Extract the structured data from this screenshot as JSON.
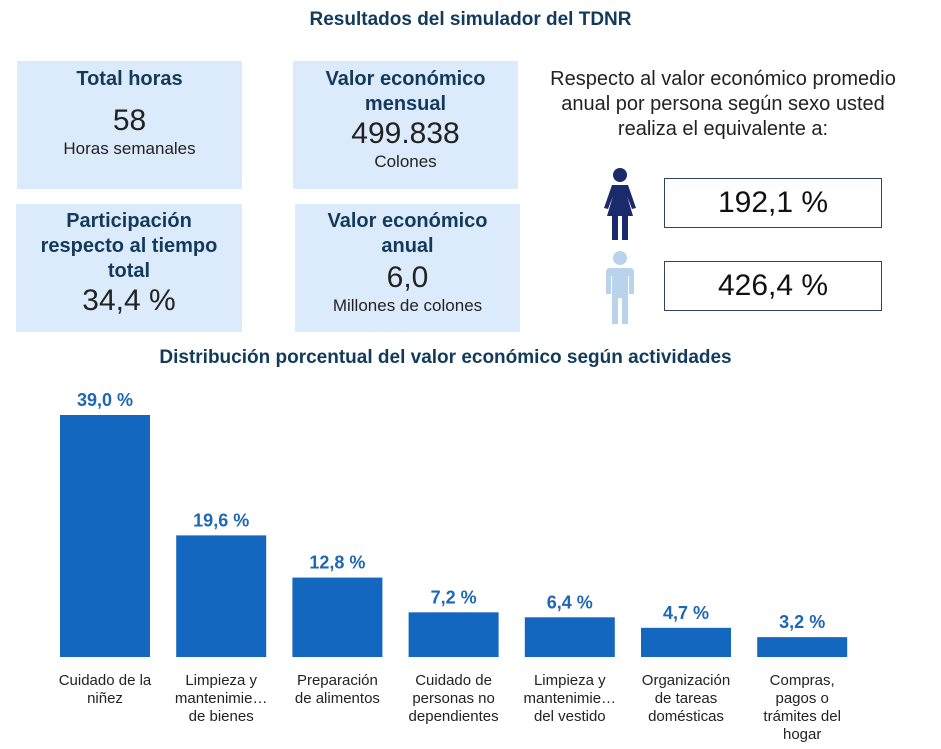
{
  "header": {
    "title": "Resultados del simulador del TDNR"
  },
  "cards": [
    {
      "heading": "Total horas",
      "value": "58",
      "unit": "Horas semanales"
    },
    {
      "heading": "Valor económico mensual",
      "value": "499.838",
      "unit": "Colones"
    },
    {
      "heading": "Participación respecto al tiempo total",
      "value": "34,4 %",
      "unit": ""
    },
    {
      "heading": "Valor económico anual",
      "value": "6,0",
      "unit": "Millones de colones"
    }
  ],
  "comparison": {
    "text": "Respecto al valor económico promedio anual por persona según sexo usted realiza el equivalente a:",
    "women": {
      "icon": "woman-icon",
      "value": "192,1 %",
      "color": "#1b2a6b"
    },
    "men": {
      "icon": "man-icon",
      "value": "426,4 %",
      "color": "#b9d3ec"
    }
  },
  "colors": {
    "bar": "#1467bf",
    "bar_label": "#1f67b3",
    "card_bg": "#dcebfb",
    "heading": "#123a5c"
  },
  "chart_data": {
    "type": "bar",
    "title": "Distribución porcentual del valor económico según actividades",
    "categories": [
      [
        "Cuidado de la",
        "niñez"
      ],
      [
        "Limpieza y",
        "mantenimie…",
        "de bienes"
      ],
      [
        "Preparación",
        "de alimentos"
      ],
      [
        "Cuidado de",
        "personas no",
        "dependientes"
      ],
      [
        "Limpieza y",
        "mantenimie…",
        "del vestido"
      ],
      [
        "Organización",
        "de tareas",
        "domésticas"
      ],
      [
        "Compras,",
        "pagos o",
        "trámites del",
        "hogar"
      ]
    ],
    "values": [
      39.0,
      19.6,
      12.8,
      7.2,
      6.4,
      4.7,
      3.2
    ],
    "labels": [
      "39,0 %",
      "19,6 %",
      "12,8 %",
      "7,2 %",
      "6,4 %",
      "4,7 %",
      "3,2 %"
    ],
    "xlabel": "",
    "ylabel": "",
    "ylim": [
      0,
      39.0
    ],
    "grid": false,
    "legend": "none"
  }
}
